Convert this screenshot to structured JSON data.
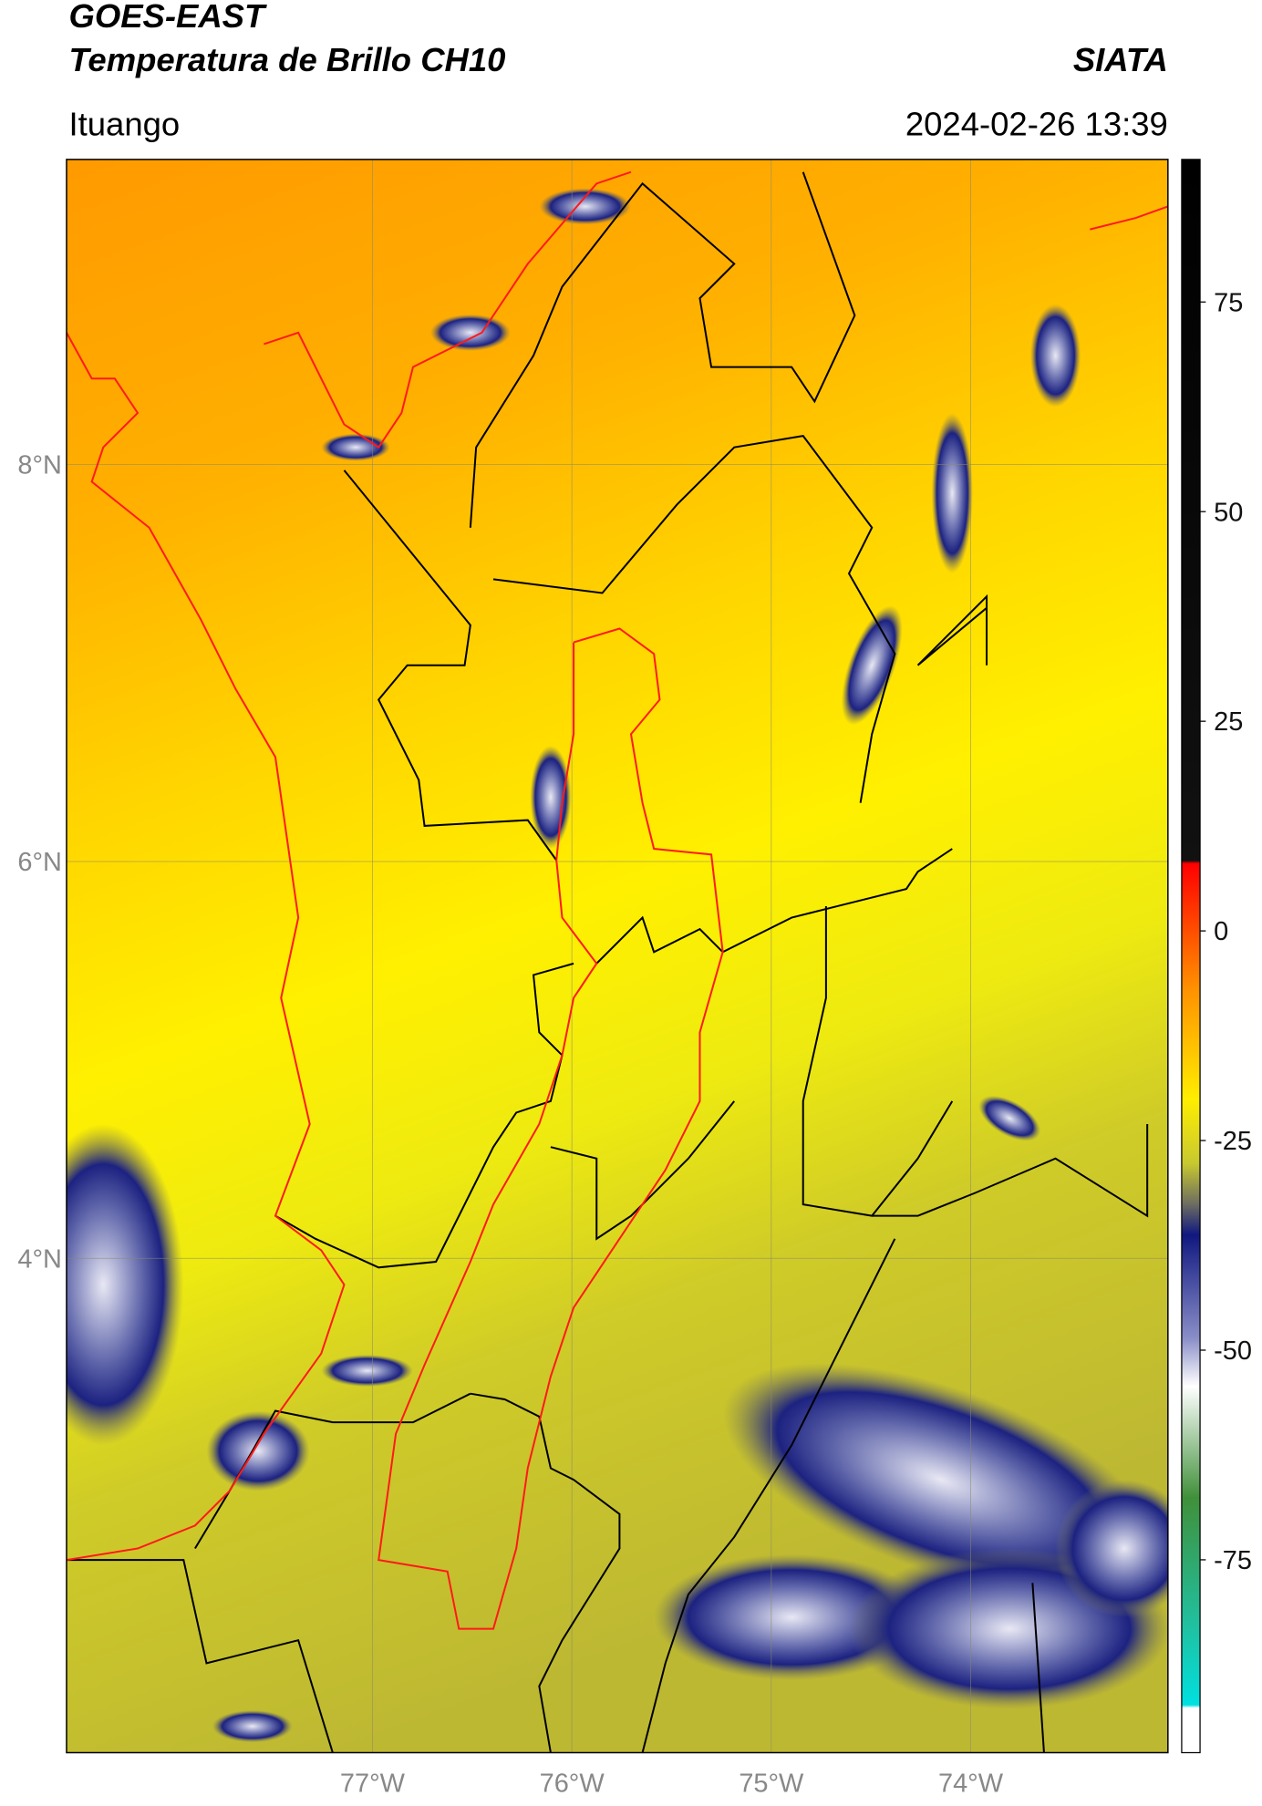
{
  "header": {
    "title": "GOES-EAST",
    "subtitle": "Temperatura de Brillo CH10",
    "org": "SIATA",
    "location": "Ituango",
    "timestamp": "2024-02-26 13:39"
  },
  "chart_data": {
    "type": "map",
    "xlim": [
      -78.534,
      -73.011
    ],
    "ylim": [
      1.509,
      9.538
    ],
    "xticks": [
      {
        "value": -77,
        "label": "77°W"
      },
      {
        "value": -76,
        "label": "76°W"
      },
      {
        "value": -75,
        "label": "75°W"
      },
      {
        "value": -74,
        "label": "74°W"
      }
    ],
    "yticks": [
      {
        "value": 8,
        "label": "8°N"
      },
      {
        "value": 6,
        "label": "6°N"
      },
      {
        "value": 4,
        "label": "4°N"
      }
    ],
    "grid": true,
    "colorbar": {
      "lim": [
        -98,
        92
      ],
      "ticks": [
        -75,
        -50,
        -25,
        0,
        25,
        50,
        75
      ]
    }
  }
}
